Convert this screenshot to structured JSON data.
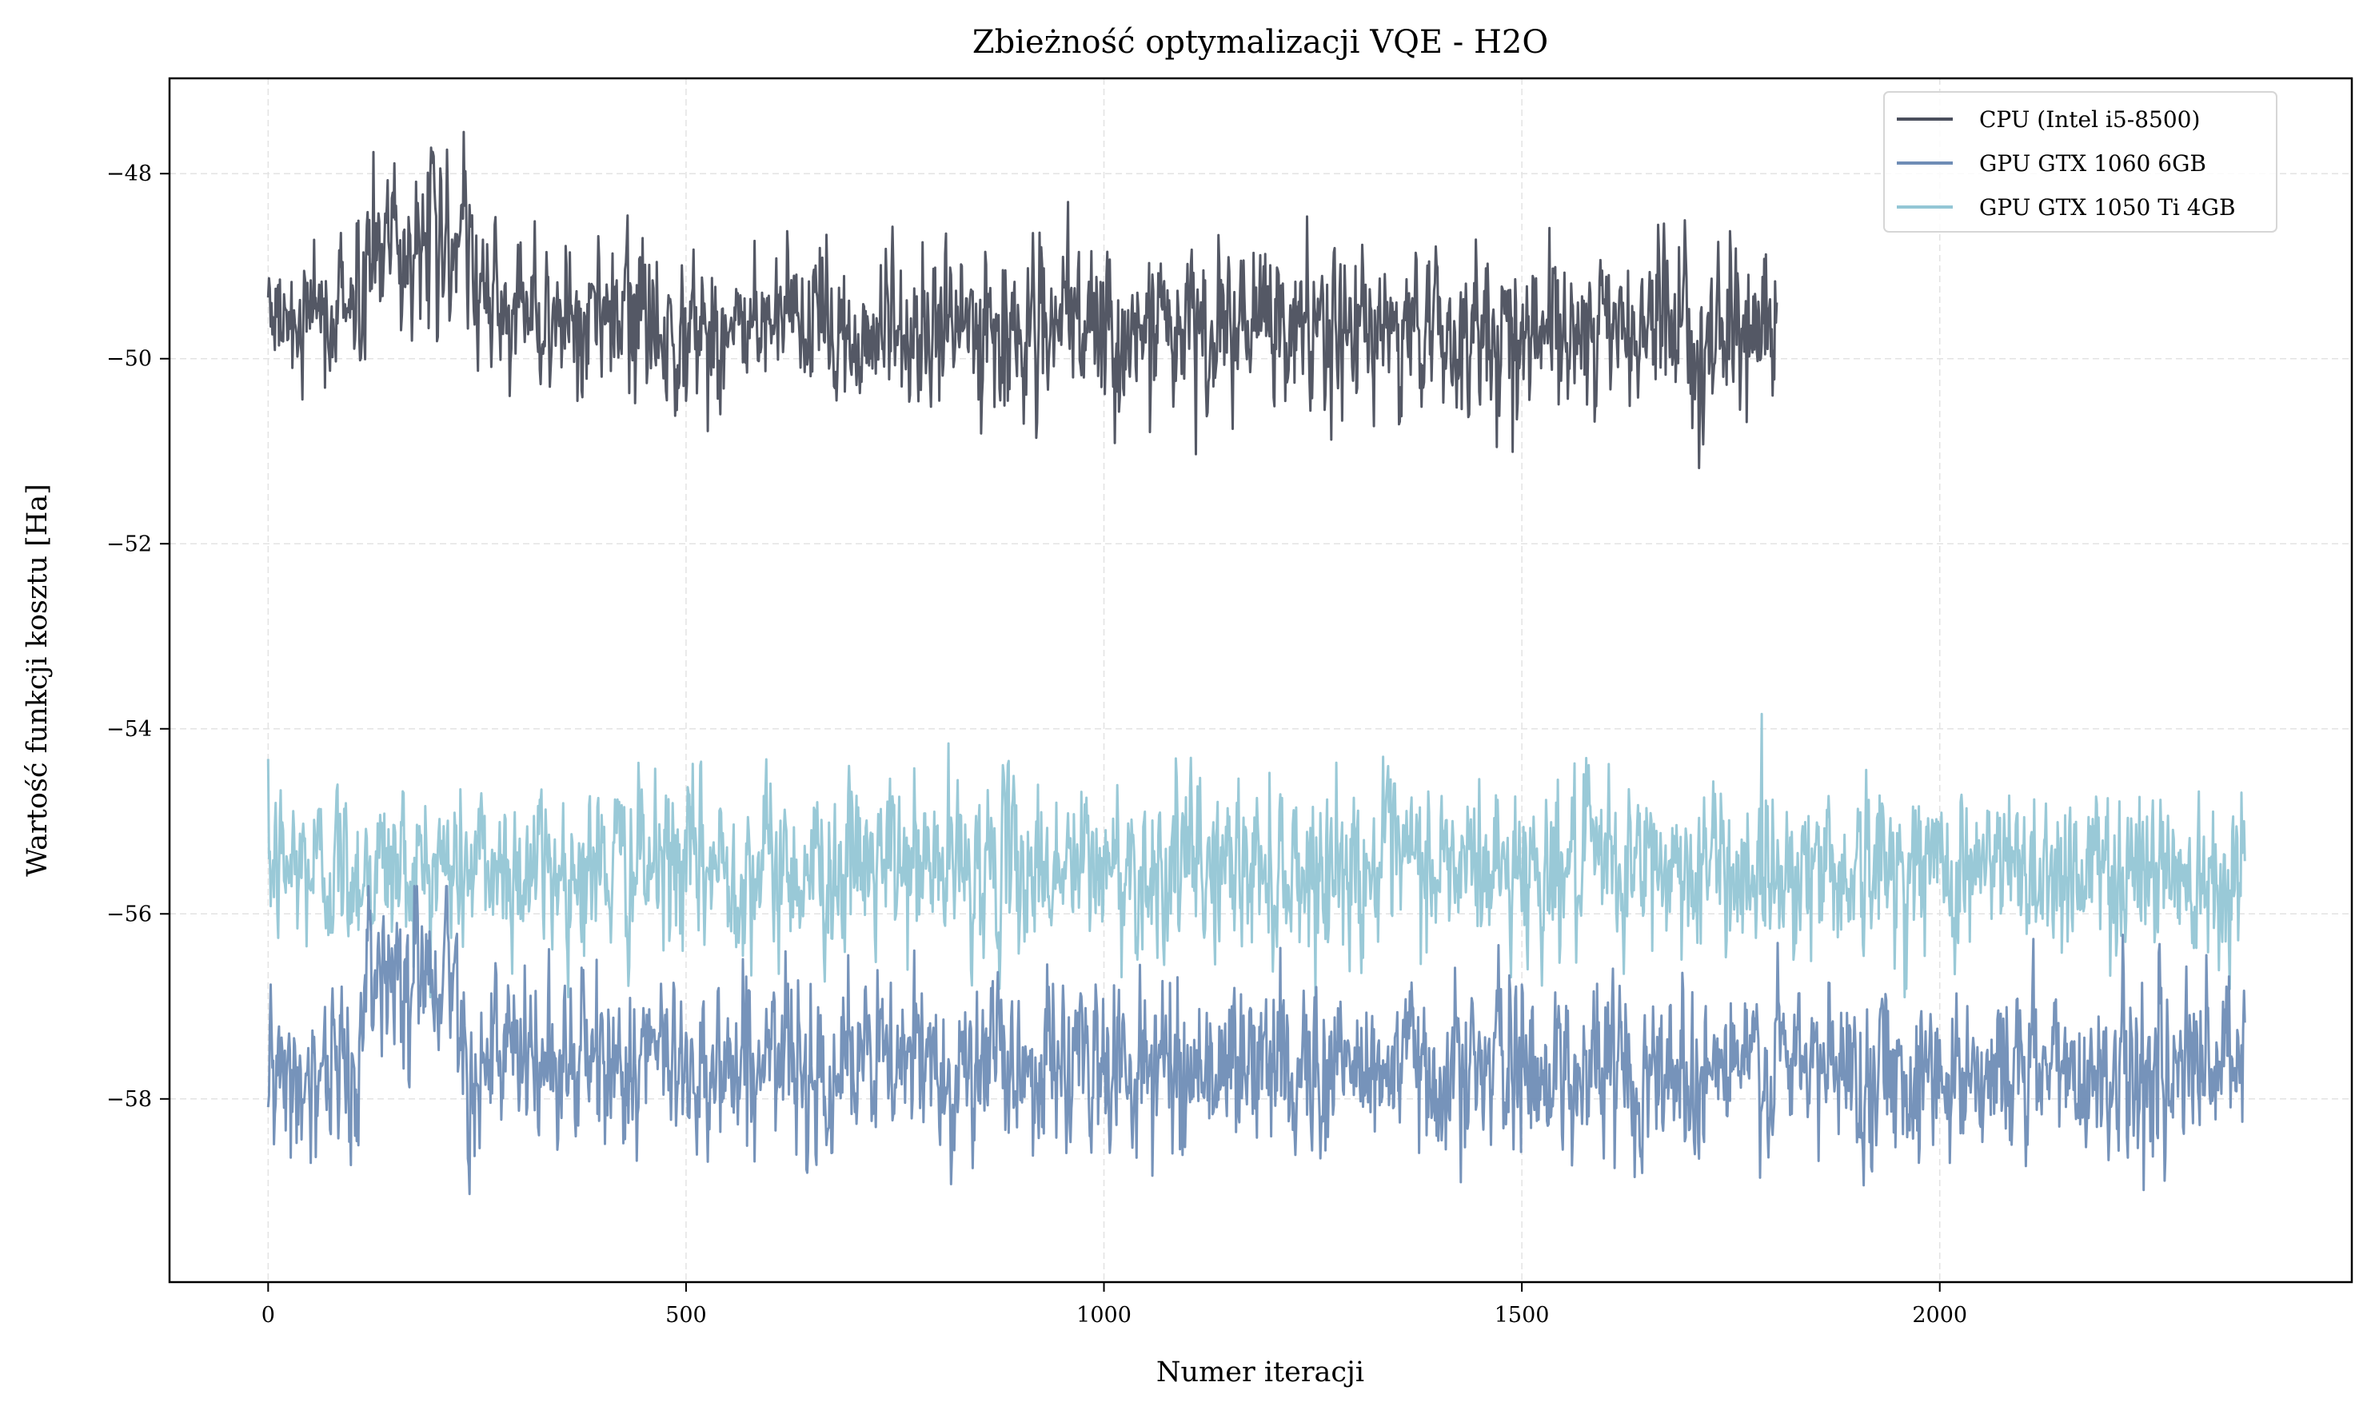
{
  "chart_data": {
    "type": "line",
    "title": "Zbieżność optymalizacji VQE - H2O",
    "xlabel": "Numer iteracji",
    "ylabel": "Wartość funkcji kosztu [Ha]",
    "xlim": [
      -118,
      2493
    ],
    "ylim": [
      -59.98,
      -46.97
    ],
    "xticks": [
      0,
      500,
      1000,
      1500,
      2000
    ],
    "yticks": [
      -48,
      -50,
      -52,
      -54,
      -56,
      -58
    ],
    "ytick_labels": [
      "−48",
      "−50",
      "−52",
      "−54",
      "−56",
      "−58"
    ],
    "grid": true,
    "legend_position": "top-right",
    "series": [
      {
        "name": "CPU (Intel i5-8500)",
        "color": "#4b4f5d",
        "x_range": [
          0,
          1805
        ],
        "level_profile": [
          [
            0,
            -49.7
          ],
          [
            110,
            -49.4
          ],
          [
            125,
            -48.7
          ],
          [
            230,
            -48.7
          ],
          [
            250,
            -49.4
          ],
          [
            400,
            -49.6
          ],
          [
            600,
            -49.7
          ],
          [
            1805,
            -49.7
          ]
        ],
        "noise_std": 0.42,
        "y_min": -51.45,
        "y_max": -47.55
      },
      {
        "name": "GPU GTX 1060 6GB",
        "color": "#6f8db6",
        "x_range": [
          0,
          2365
        ],
        "level_profile": [
          [
            0,
            -57.8
          ],
          [
            110,
            -57.6
          ],
          [
            125,
            -56.5
          ],
          [
            225,
            -56.6
          ],
          [
            240,
            -57.6
          ],
          [
            2365,
            -57.7
          ]
        ],
        "noise_std": 0.45,
        "y_min": -59.4,
        "y_max": -55.7
      },
      {
        "name": "GPU GTX 1050 Ti 4GB",
        "color": "#93c6d5",
        "x_range": [
          0,
          2365
        ],
        "level_profile": [
          [
            0,
            -55.5
          ],
          [
            2365,
            -55.5
          ]
        ],
        "noise_std": 0.45,
        "y_min": -56.9,
        "y_max": -53.6
      }
    ]
  }
}
